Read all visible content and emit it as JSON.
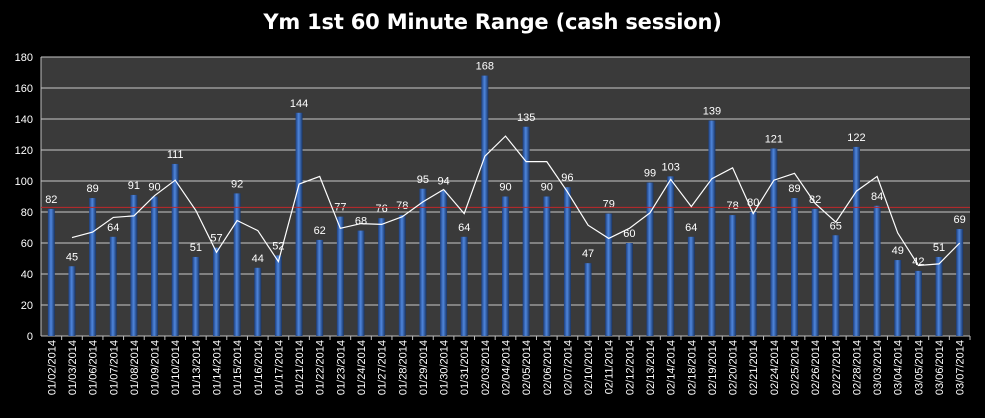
{
  "chart_data": {
    "type": "bar",
    "title": "Ym 1st 60 Minute Range (cash session)",
    "xlabel": "",
    "ylabel": "",
    "ylim": [
      0,
      180
    ],
    "yticks": [
      0,
      20,
      40,
      60,
      80,
      100,
      120,
      140,
      160,
      180
    ],
    "grid": true,
    "legend": "none",
    "categories": [
      "01/02/2014",
      "01/03/2014",
      "01/06/2014",
      "01/07/2014",
      "01/08/2014",
      "01/09/2014",
      "01/10/2014",
      "01/13/2014",
      "01/14/2014",
      "01/15/2014",
      "01/16/2014",
      "01/17/2014",
      "01/21/2014",
      "01/22/2014",
      "01/23/2014",
      "01/24/2014",
      "01/27/2014",
      "01/28/2014",
      "01/29/2014",
      "01/30/2014",
      "01/31/2014",
      "02/03/2014",
      "02/04/2014",
      "02/05/2014",
      "02/06/2014",
      "02/07/2014",
      "02/10/2014",
      "02/11/2014",
      "02/12/2014",
      "02/13/2014",
      "02/14/2014",
      "02/18/2014",
      "02/19/2014",
      "02/20/2014",
      "02/21/2014",
      "02/24/2014",
      "02/25/2014",
      "02/26/2014",
      "02/27/2014",
      "02/28/2014",
      "03/03/2014",
      "03/04/2014",
      "03/05/2014",
      "03/06/2014",
      "03/07/2014"
    ],
    "values": [
      82,
      45,
      89,
      64,
      91,
      90,
      111,
      51,
      57,
      92,
      44,
      52,
      144,
      62,
      77,
      68,
      76,
      78,
      95,
      94,
      64,
      168,
      90,
      135,
      90,
      96,
      47,
      79,
      60,
      99,
      103,
      64,
      139,
      78,
      80,
      121,
      89,
      82,
      65,
      122,
      84,
      49,
      42,
      51,
      69
    ],
    "moving_average": [
      null,
      63.5,
      67,
      76.5,
      77.5,
      90.5,
      100.5,
      81,
      54,
      74.5,
      68,
      48,
      98,
      103,
      69.5,
      72.5,
      72,
      77,
      86.5,
      94.5,
      79,
      116,
      129,
      112.5,
      112.5,
      93,
      71.5,
      63,
      69.5,
      79.5,
      101,
      83.5,
      101.5,
      108.5,
      79,
      100.5,
      105,
      85.5,
      73.5,
      93.5,
      103,
      66.5,
      45.5,
      46.5,
      60
    ],
    "average_line": 83,
    "colors": {
      "bar": "#3a6fc4",
      "moving_average": "#ffffff",
      "average_line": "#c0292b",
      "plot_background": "#3a3a3a",
      "gridline": "#c8c8c8",
      "text": "#ffffff"
    }
  }
}
